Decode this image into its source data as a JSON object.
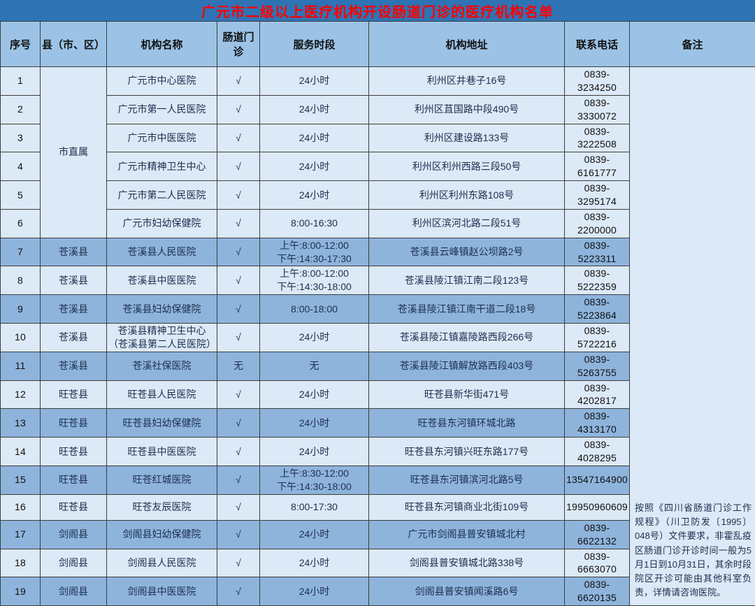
{
  "title": "广元市二级以上医疗机构开设肠道门诊的医疗机构名单",
  "columns": [
    "序号",
    "县（市、区）",
    "机构名称",
    "肠道门诊",
    "服务时段",
    "机构地址",
    "联系电话",
    "备注"
  ],
  "remark": "按照《四川省肠道门诊工作规程》（川卫防发〔1995〕048号）文件要求，非霍乱疫区肠道门诊开诊时间一般为5月1日到10月31日，其余时段院区开诊可能由其他科室负责，详情请咨询医院。",
  "colors": {
    "title_bg": "#2e74b5",
    "title_text": "#ff0000",
    "header_bg": "#9cc3e6",
    "row_light": "#dce9f6",
    "row_dark": "#8eb4dc",
    "border": "#3d3d3d"
  },
  "rows": [
    {
      "seq": "1",
      "county": "市直属",
      "county_rowspan": 6,
      "name": "广元市中心医院",
      "clinic": "√",
      "hours": [
        "24小时"
      ],
      "address": "利州区井巷子16号",
      "phone": "0839-3234250"
    },
    {
      "seq": "2",
      "name": "广元市第一人民医院",
      "clinic": "√",
      "hours": [
        "24小时"
      ],
      "address": "利州区苴国路中段490号",
      "phone": "0839-3330072"
    },
    {
      "seq": "3",
      "name": "广元市中医医院",
      "clinic": "√",
      "hours": [
        "24小时"
      ],
      "address": "利州区建设路133号",
      "phone": "0839-3222508"
    },
    {
      "seq": "4",
      "name": "广元市精神卫生中心",
      "clinic": "√",
      "hours": [
        "24小时"
      ],
      "address": "利州区利州西路三段50号",
      "phone": "0839-6161777"
    },
    {
      "seq": "5",
      "name": "广元市第二人民医院",
      "clinic": "√",
      "hours": [
        "24小时"
      ],
      "address": "利州区利州东路108号",
      "phone": "0839-3295174"
    },
    {
      "seq": "6",
      "name": "广元市妇幼保健院",
      "clinic": "√",
      "hours": [
        "8:00-16:30"
      ],
      "address": "利州区滨河北路二段51号",
      "phone": "0839-2200000"
    },
    {
      "seq": "7",
      "county": "苍溪县",
      "name": "苍溪县人民医院",
      "clinic": "√",
      "hours": [
        "上午:8:00-12:00",
        "下午:14:30-17:30"
      ],
      "address": "苍溪县云峰镇赵公坝路2号",
      "phone": "0839-5223311"
    },
    {
      "seq": "8",
      "county": "苍溪县",
      "name": "苍溪县中医医院",
      "clinic": "√",
      "hours": [
        "上午:8:00-12:00",
        "下午:14:30-18:00"
      ],
      "address": "苍溪县陵江镇江南二段123号",
      "phone": "0839-5222359"
    },
    {
      "seq": "9",
      "county": "苍溪县",
      "name": "苍溪县妇幼保健院",
      "clinic": "√",
      "hours": [
        "8:00-18:00"
      ],
      "address": "苍溪县陵江镇江南干道二段18号",
      "phone": "0839-5223864"
    },
    {
      "seq": "10",
      "county": "苍溪县",
      "name": "苍溪县精神卫生中心\n（苍溪县第二人民医院）",
      "clinic": "√",
      "hours": [
        "24小时"
      ],
      "address": "苍溪县陵江镇嘉陵路西段266号",
      "phone": "0839-5722216"
    },
    {
      "seq": "11",
      "county": "苍溪县",
      "name": "苍溪社保医院",
      "clinic": "无",
      "hours": [
        "无"
      ],
      "address": "苍溪县陵江镇解放路西段403号",
      "phone": "0839-5263755"
    },
    {
      "seq": "12",
      "county": "旺苍县",
      "name": "旺苍县人民医院",
      "clinic": "√",
      "hours": [
        "24小时"
      ],
      "address": "旺苍县新华街471号",
      "phone": "0839-4202817"
    },
    {
      "seq": "13",
      "county": "旺苍县",
      "name": "旺苍县妇幼保健院",
      "clinic": "√",
      "hours": [
        "24小时"
      ],
      "address": "旺苍县东河镇环城北路",
      "phone": "0839-4313170"
    },
    {
      "seq": "14",
      "county": "旺苍县",
      "name": "旺苍县中医医院",
      "clinic": "√",
      "hours": [
        "24小时"
      ],
      "address": "旺苍县东河镇兴旺东路177号",
      "phone": "0839-4028295"
    },
    {
      "seq": "15",
      "county": "旺苍县",
      "name": "旺苍红城医院",
      "clinic": "√",
      "hours": [
        "上午:8:30-12:00",
        "下午:14:30-18:00"
      ],
      "address": "旺苍县东河镇滨河北路5号",
      "phone": "13547164900"
    },
    {
      "seq": "16",
      "county": "旺苍县",
      "name": "旺苍友辰医院",
      "clinic": "√",
      "hours": [
        "8:00-17:30"
      ],
      "address": "旺苍县东河镇商业北街109号",
      "phone": "19950960609"
    },
    {
      "seq": "17",
      "county": "剑阁县",
      "name": "剑阁县妇幼保健院",
      "clinic": "√",
      "hours": [
        "24小时"
      ],
      "address": "广元市剑阁县普安镇城北村",
      "phone": "0839-6622132"
    },
    {
      "seq": "18",
      "county": "剑阁县",
      "name": "剑阁县人民医院",
      "clinic": "√",
      "hours": [
        "24小时"
      ],
      "address": "剑阁县普安镇城北路338号",
      "phone": "0839-6663070"
    },
    {
      "seq": "19",
      "county": "剑阁县",
      "name": "剑阁县中医医院",
      "clinic": "√",
      "hours": [
        "24小时"
      ],
      "address": "剑阁县普安镇闻溪路6号",
      "phone": "0839-6620135"
    }
  ]
}
